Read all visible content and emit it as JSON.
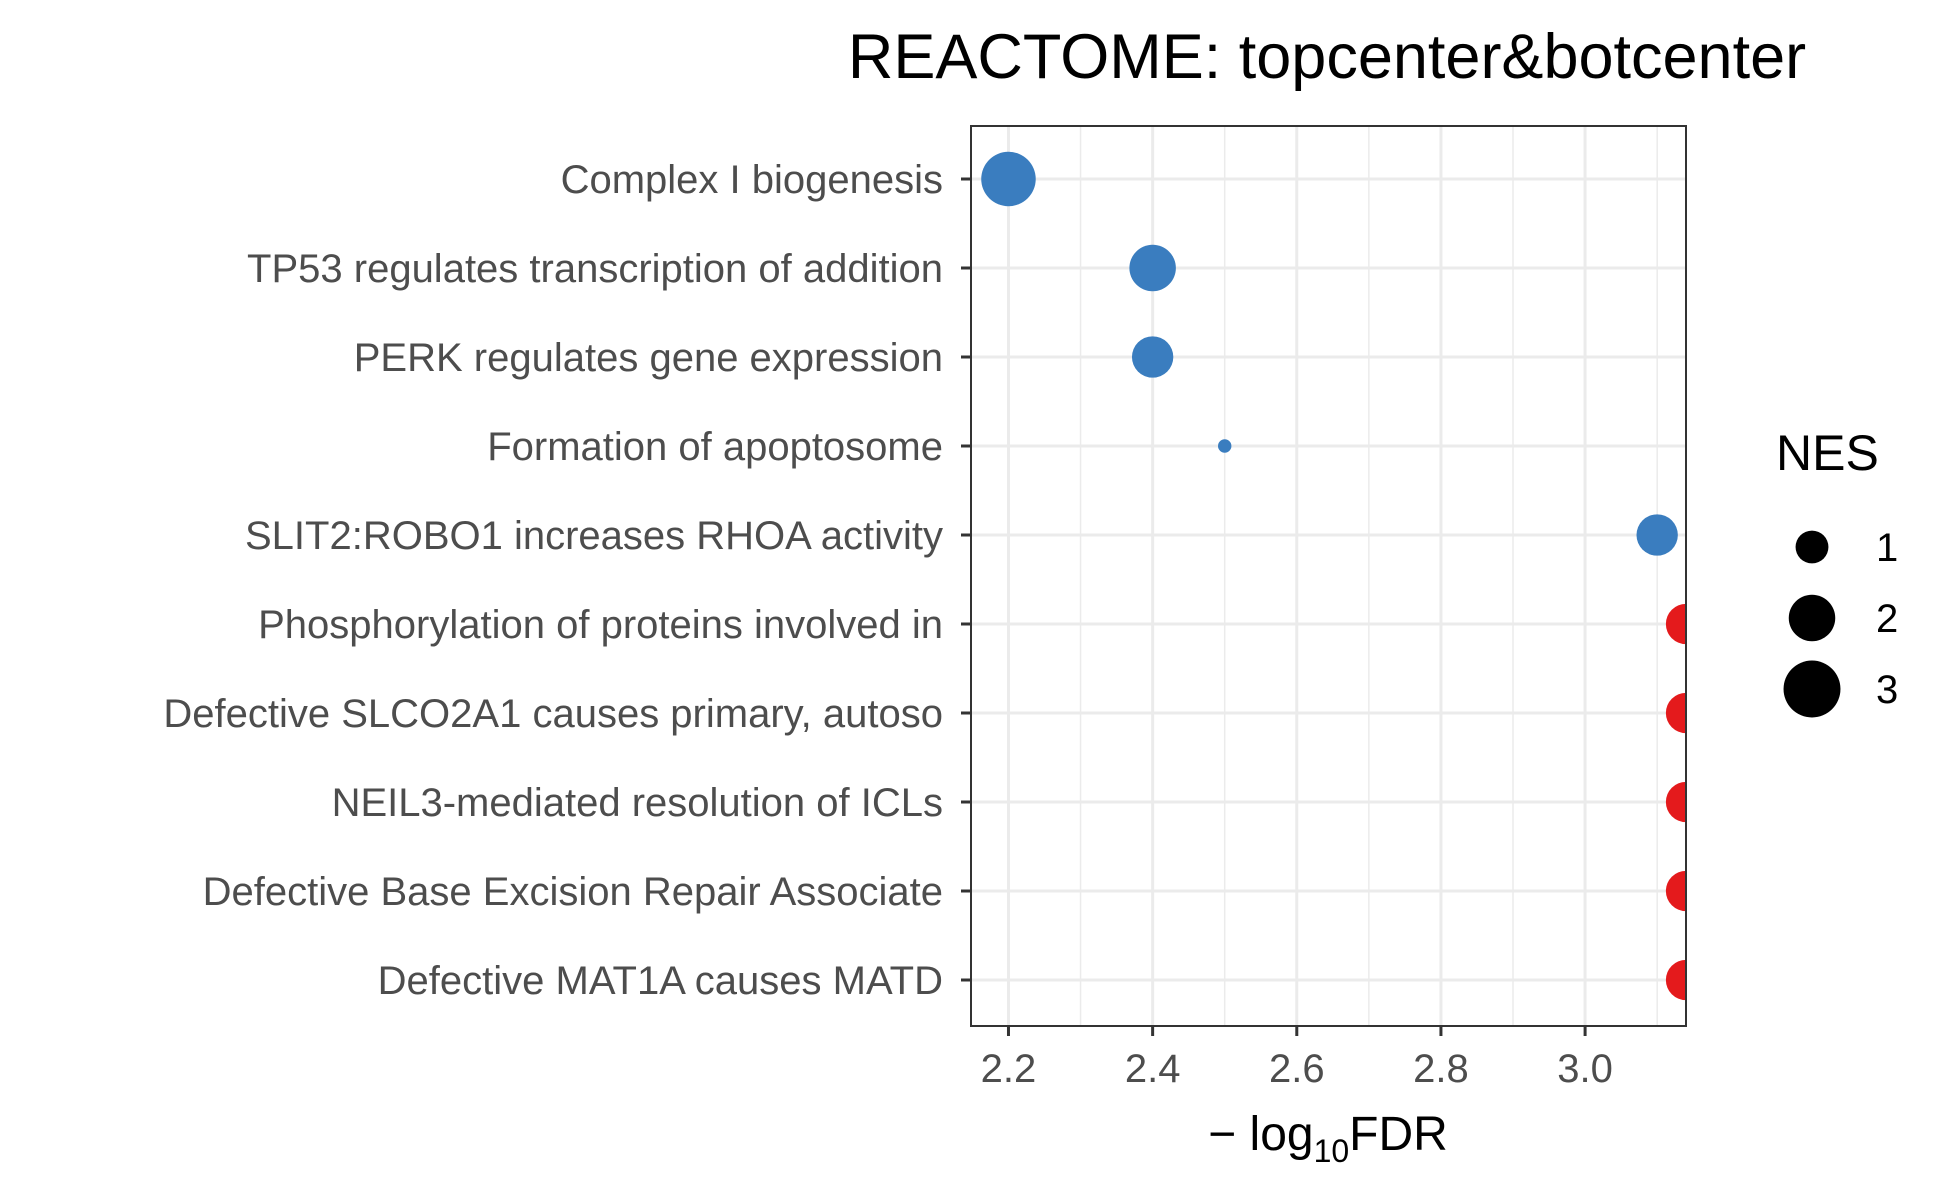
{
  "chart_data": {
    "type": "scatter",
    "title": "REACTOME: topcenter&botcenter",
    "xlabel": {
      "prefix": "− log",
      "subscript": "10",
      "suffix": "FDR"
    },
    "xlim": [
      2.148,
      3.14
    ],
    "x_ticks": [
      2.2,
      2.4,
      2.6,
      2.8,
      3.0
    ],
    "x_tick_labels": [
      "2.2",
      "2.4",
      "2.6",
      "2.8",
      "3.0"
    ],
    "grid": true,
    "categories": [
      "Complex I biogenesis",
      "TP53 regulates transcription of addition",
      "PERK regulates gene expression",
      "Formation of apoptosome",
      "SLIT2:ROBO1 increases RHOA activity",
      "Phosphorylation of proteins involved in ",
      "Defective SLCO2A1 causes primary, autoso",
      "NEIL3-mediated resolution of ICLs",
      "Defective Base Excision Repair Associate",
      "Defective MAT1A causes MATD"
    ],
    "points": [
      {
        "category": "Complex I biogenesis",
        "x": 2.2,
        "nes": 3.3,
        "direction": "down"
      },
      {
        "category": "TP53 regulates transcription of addition",
        "x": 2.4,
        "nes": 2.4,
        "direction": "down"
      },
      {
        "category": "PERK regulates gene expression",
        "x": 2.4,
        "nes": 1.9,
        "direction": "down"
      },
      {
        "category": "Formation of apoptosome",
        "x": 2.5,
        "nes": 0.2,
        "direction": "down"
      },
      {
        "category": "SLIT2:ROBO1 increases RHOA activity",
        "x": 3.1,
        "nes": 1.9,
        "direction": "down"
      },
      {
        "category": "Phosphorylation of proteins involved in ",
        "x": 3.14,
        "nes": 1.8,
        "direction": "up"
      },
      {
        "category": "Defective SLCO2A1 causes primary, autoso",
        "x": 3.14,
        "nes": 1.8,
        "direction": "up"
      },
      {
        "category": "NEIL3-mediated resolution of ICLs",
        "x": 3.14,
        "nes": 1.8,
        "direction": "up"
      },
      {
        "category": "Defective Base Excision Repair Associate",
        "x": 3.14,
        "nes": 1.8,
        "direction": "up"
      },
      {
        "category": "Defective MAT1A causes MATD",
        "x": 3.14,
        "nes": 1.8,
        "direction": "up"
      }
    ],
    "colors": {
      "down": "#3a7dbf",
      "up": "#e41a1c",
      "grid": "#ebebeb",
      "frame": "#333333"
    },
    "legend": {
      "title": "NES",
      "position": "right",
      "entries": [
        {
          "label": "1",
          "nes": 1
        },
        {
          "label": "2",
          "nes": 2
        },
        {
          "label": "3",
          "nes": 3
        }
      ]
    }
  }
}
